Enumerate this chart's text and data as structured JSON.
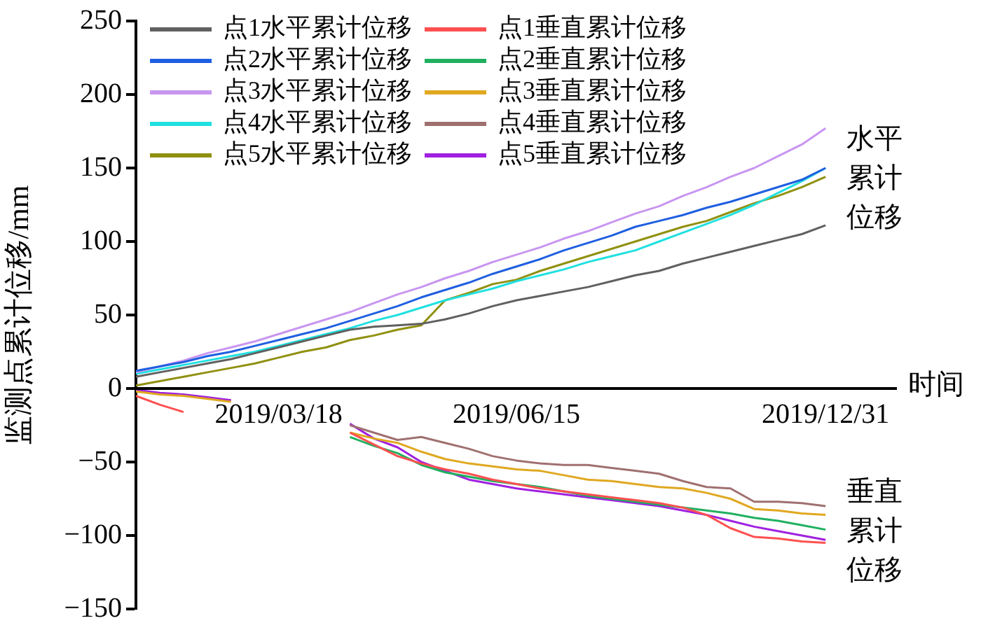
{
  "chart_data": {
    "type": "line",
    "xlabel": "时间",
    "ylabel": "监测点累计位移/mm",
    "categories": [
      null,
      null,
      null,
      null,
      null,
      null,
      "2019/03/18",
      null,
      null,
      null,
      null,
      null,
      null,
      null,
      null,
      null,
      "2019/06/15",
      null,
      null,
      null,
      null,
      null,
      null,
      null,
      null,
      null,
      null,
      null,
      null,
      "2019/12/31",
      null,
      null,
      null
    ],
    "ylim": [
      -150,
      250
    ],
    "yticks": [
      -150,
      -100,
      -50,
      0,
      50,
      100,
      150,
      200,
      250
    ],
    "grid": false,
    "legend": "top left",
    "marker": "none",
    "line_style": "solid",
    "annotations": [
      "水平累计位移",
      "垂直累计位移"
    ],
    "series": [
      {
        "name": "点1水平累计位移",
        "color": "#606060",
        "values": [
          8,
          11,
          14,
          17,
          20,
          24,
          28,
          32,
          36,
          40,
          42,
          43,
          44,
          47,
          51,
          56,
          60,
          63,
          66,
          69,
          73,
          77,
          80,
          85,
          89,
          93,
          97,
          101,
          105,
          111,
          null,
          null,
          null
        ]
      },
      {
        "name": "点1垂直累计位移",
        "color": "#ff5050",
        "values": [
          -5,
          -11,
          -16,
          null,
          null,
          null,
          null,
          null,
          null,
          -30,
          -38,
          -46,
          -51,
          -55,
          -58,
          -62,
          -65,
          -68,
          -70,
          -72,
          -74,
          -76,
          -78,
          -81,
          -86,
          -95,
          -101,
          -102,
          -104,
          -105,
          null,
          null,
          null
        ]
      },
      {
        "name": "点2水平累计位移",
        "color": "#1f5fe0",
        "values": [
          12,
          15,
          18,
          22,
          25,
          29,
          33,
          37,
          41,
          46,
          51,
          56,
          62,
          67,
          72,
          78,
          83,
          88,
          94,
          99,
          104,
          110,
          114,
          118,
          123,
          127,
          132,
          137,
          142,
          150,
          null,
          null,
          null
        ]
      },
      {
        "name": "点2垂直累计位移",
        "color": "#20b060",
        "values": [
          null,
          null,
          null,
          null,
          null,
          null,
          null,
          null,
          null,
          -33,
          -39,
          -44,
          -52,
          -57,
          -60,
          -63,
          -65,
          -67,
          -70,
          -73,
          -75,
          -77,
          -79,
          -81,
          -83,
          -85,
          -88,
          -90,
          -93,
          -96,
          null,
          null,
          null
        ]
      },
      {
        "name": "点3水平累计位移",
        "color": "#c896f0",
        "values": [
          11,
          15,
          19,
          24,
          28,
          32,
          37,
          42,
          47,
          52,
          58,
          64,
          69,
          75,
          80,
          86,
          91,
          96,
          102,
          107,
          113,
          119,
          124,
          131,
          137,
          144,
          150,
          158,
          166,
          177,
          null,
          null,
          null
        ]
      },
      {
        "name": "点3垂直累计位移",
        "color": "#e0a820",
        "values": [
          -2,
          -4,
          -5,
          -7,
          -9,
          null,
          null,
          null,
          null,
          -30,
          -34,
          -37,
          -43,
          -48,
          -51,
          -53,
          -55,
          -56,
          -59,
          -62,
          -63,
          -65,
          -67,
          -68,
          -71,
          -75,
          -82,
          -83,
          -85,
          -86,
          null,
          null,
          null
        ]
      },
      {
        "name": "点4水平累计位移",
        "color": "#20e0e0",
        "values": [
          10,
          13,
          16,
          19,
          22,
          25,
          29,
          33,
          37,
          41,
          46,
          50,
          55,
          60,
          64,
          68,
          73,
          77,
          81,
          86,
          90,
          94,
          100,
          106,
          112,
          118,
          125,
          133,
          141,
          150,
          null,
          null,
          null
        ]
      },
      {
        "name": "点4垂直累计位移",
        "color": "#a07070",
        "values": [
          null,
          null,
          null,
          null,
          null,
          null,
          null,
          null,
          null,
          -25,
          -30,
          -35,
          -33,
          -37,
          -41,
          -46,
          -49,
          -51,
          -52,
          -52,
          -54,
          -56,
          -58,
          -63,
          -67,
          -68,
          -77,
          -77,
          -78,
          -80,
          null,
          null,
          null
        ]
      },
      {
        "name": "点5水平累计位移",
        "color": "#909010",
        "values": [
          2,
          5,
          8,
          11,
          14,
          17,
          21,
          25,
          28,
          33,
          36,
          40,
          43,
          60,
          65,
          71,
          74,
          80,
          85,
          90,
          95,
          100,
          105,
          110,
          114,
          120,
          126,
          131,
          137,
          144,
          null,
          null,
          null
        ]
      },
      {
        "name": "点5垂直累计位移",
        "color": "#a020e0",
        "values": [
          -1,
          -3,
          -4,
          -6,
          -8,
          null,
          null,
          null,
          null,
          -24,
          -34,
          -40,
          -50,
          -56,
          -62,
          -65,
          -68,
          -70,
          -72,
          -74,
          -76,
          -78,
          -80,
          -83,
          -86,
          -90,
          -94,
          -97,
          -100,
          -103,
          null,
          null,
          null
        ]
      }
    ]
  }
}
